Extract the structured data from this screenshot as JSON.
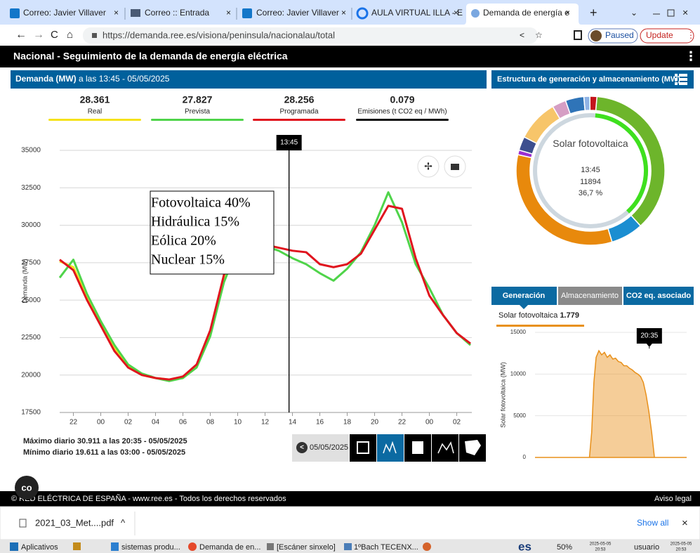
{
  "browser": {
    "tabs": [
      "Correo: Javier Villaver",
      "Correo :: Entrada",
      "Correo: Javier Villaver",
      "AULA VIRTUAL ILLA - E",
      "Demanda de energía e"
    ],
    "url": "https://demanda.ree.es/visiona/peninsula/nacionalau/total",
    "profile_status": "Paused",
    "update_button": "Update"
  },
  "header": {
    "title": "Nacional  -  Seguimiento de la demanda de energía eléctrica"
  },
  "demand_panel": {
    "title": "Demanda (MW)",
    "subtitle": " a las 13:45 - 05/05/2025",
    "summary_values": [
      "28.361",
      "27.827",
      "28.256"
    ],
    "emissions": {
      "value": "0.079",
      "label": "Emisiones (t CO2 eq / MWh)",
      "color": "#111111"
    },
    "overlay_lines": [
      "Fotovoltaica 40%",
      "Hidráulica 15%",
      "Eólica 20%",
      "Nuclear 15%"
    ],
    "max_text": "Máximo diario 30.911 a las 20:35 - 05/05/2025",
    "min_text": "Mínimo diario 19.611 a las 03:00 - 05/05/2025",
    "date_button": "05/05/2025"
  },
  "structure_panel": {
    "title": "Estructura de generación y almacenamiento (MW)",
    "tabs": [
      "Generación",
      "Almacenamiento",
      "CO2 eq. asociado"
    ],
    "selected": {
      "name": "Solar fotovoltaica ",
      "value": "1.779"
    }
  },
  "chart_data": [
    {
      "type": "line",
      "ylabel": "Demanda (MW)",
      "x": [
        21,
        22,
        23,
        24,
        25,
        26,
        27,
        28,
        29,
        30,
        31,
        32,
        33,
        34,
        35,
        36,
        37,
        38,
        39,
        40,
        41,
        42,
        43,
        44,
        45,
        46,
        47,
        48,
        49,
        50,
        51
      ],
      "series": [
        {
          "name": "Real",
          "color": "#f5e21b",
          "values": [
            27600,
            27200,
            25200,
            23400,
            21800,
            20600,
            20000,
            19800,
            19700,
            19800,
            20600,
            22900,
            26600,
            28700,
            29100,
            28700,
            28500,
            null,
            null,
            null,
            null,
            null,
            null,
            null,
            null,
            null,
            null,
            null,
            null,
            null,
            null
          ]
        },
        {
          "name": "Prevista",
          "color": "#4fd44a",
          "values": [
            26500,
            27700,
            25400,
            23600,
            22000,
            20700,
            20100,
            19800,
            19600,
            19800,
            20500,
            22600,
            26200,
            28500,
            29000,
            28600,
            28300,
            27800,
            27400,
            26800,
            26300,
            27100,
            28200,
            30000,
            32200,
            30200,
            27400,
            25800,
            24000,
            22800,
            22000
          ]
        },
        {
          "name": "Programada",
          "color": "#e0141e",
          "values": [
            27700,
            27000,
            25000,
            23300,
            21600,
            20500,
            20000,
            19800,
            19700,
            19900,
            20700,
            23000,
            26700,
            28800,
            29000,
            28700,
            28500,
            28300,
            28200,
            27400,
            27200,
            27400,
            28100,
            29700,
            31300,
            31100,
            27800,
            25300,
            24000,
            22800,
            22100
          ]
        }
      ],
      "xlim": [
        21,
        51.1
      ],
      "xticks": [
        22,
        {
          "value": 24,
          "label": "00"
        },
        {
          "value": 26,
          "label": "02"
        },
        {
          "value": 28,
          "label": "04"
        },
        {
          "value": 30,
          "label": "06"
        },
        {
          "value": 32,
          "label": "08"
        },
        {
          "value": 34,
          "label": "10"
        },
        {
          "value": 36,
          "label": "12"
        },
        {
          "value": 38,
          "label": "14"
        },
        {
          "value": 40,
          "label": "16"
        },
        {
          "value": 42,
          "label": "18"
        },
        {
          "value": 44,
          "label": "20"
        },
        {
          "value": 46,
          "label": "22"
        },
        {
          "value": 48,
          "label": "00"
        },
        {
          "value": 50,
          "label": "02"
        }
      ],
      "ylim": [
        17500,
        35000
      ],
      "yticks": [
        17500,
        20000,
        22500,
        25000,
        27500,
        30000,
        32500,
        35000
      ],
      "grid": true,
      "cursor": {
        "x": 37.75,
        "label": "13:45"
      }
    },
    {
      "type": "donut",
      "categories": [
        "Solar fotovoltaica",
        null,
        null,
        null,
        null,
        null,
        null,
        null,
        null,
        null
      ],
      "values": [
        36.7,
        7,
        33,
        1,
        3,
        9,
        3,
        4,
        1.3,
        1.5
      ],
      "value_labels": [
        "36,7 %",
        null,
        null,
        null,
        null,
        null,
        null,
        null,
        null,
        null
      ],
      "colors": [
        "#6db52b",
        "#1b8ed1",
        "#e8890c",
        "#9b2fd0",
        "#3d4f8f",
        "#f7c56a",
        "#d59ec4",
        "#2f74b8",
        "#8fb3e6",
        "#c3141c"
      ],
      "center_time": "13:45",
      "center_value": "11894"
    },
    {
      "type": "area",
      "ylabel": "Solar fotovoltaica (MW)",
      "x": [
        0,
        9.8,
        10.2,
        10.6,
        11,
        11.5,
        12,
        12.5,
        13,
        13.5,
        14,
        14.5,
        15,
        15.5,
        16,
        16.5,
        17,
        17.5,
        18,
        18.5,
        19,
        19.5,
        20,
        20.5,
        21,
        21.5,
        27.3
      ],
      "values": [
        0,
        0,
        3000,
        9000,
        12000,
        12800,
        12300,
        12600,
        12000,
        12300,
        11800,
        11900,
        11500,
        11400,
        11000,
        11000,
        10700,
        10500,
        10200,
        10000,
        9700,
        9000,
        7500,
        5500,
        3000,
        0,
        0
      ],
      "color": "#e8901a",
      "xlim": [
        0,
        27.3
      ],
      "ylim": [
        0,
        15000
      ],
      "yticks": [
        0,
        5000,
        10000,
        15000
      ],
      "grid": true,
      "tooltip": {
        "x": 20.58,
        "label": "20:35"
      }
    }
  ],
  "footer": {
    "copyright": "© RED ELÉCTRICA DE ESPAÑA - www.ree.es - Todos los derechos reservados",
    "legal": "Aviso legal"
  },
  "downloads": {
    "file": "2021_03_Met....pdf",
    "show_all": "Show all"
  },
  "taskbar": {
    "items": [
      "Aplicativos",
      "sistemas produ...",
      "Demanda de en...",
      "[Escáner sinxelo]",
      "1ºBach TECENX..."
    ],
    "language": "es",
    "zoom": "50%",
    "clock_date": "2025-05-05",
    "clock_time": "20:53",
    "user": "usuario",
    "user_date": "2025-05-05",
    "user_time": "20:53"
  }
}
